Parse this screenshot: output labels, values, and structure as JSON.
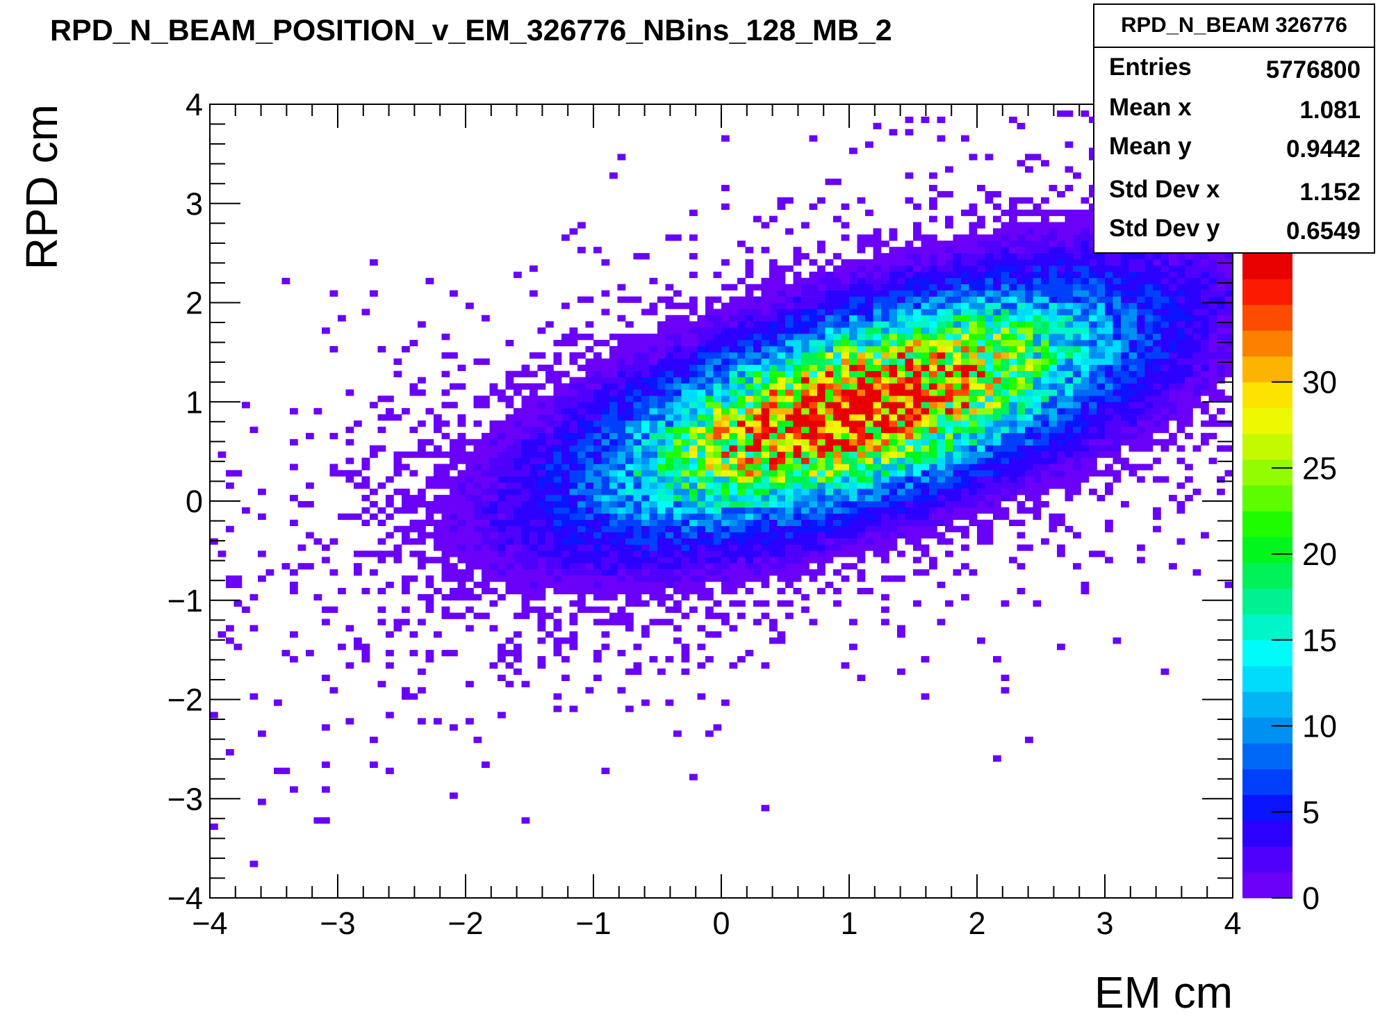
{
  "chart_data": {
    "type": "heatmap",
    "title": "RPD_N_BEAM_POSITION_v_EM_326776_NBins_128_MB_2",
    "xlabel": "EM cm",
    "ylabel": "RPD cm",
    "xlim": [
      -4,
      4
    ],
    "ylim": [
      -4,
      4
    ],
    "nbins_x": 128,
    "nbins_y": 128,
    "x_ticks": [
      {
        "value": -4,
        "label": "−4"
      },
      {
        "value": -3,
        "label": "−3"
      },
      {
        "value": -2,
        "label": "−2"
      },
      {
        "value": -1,
        "label": "−1"
      },
      {
        "value": 0,
        "label": "0"
      },
      {
        "value": 1,
        "label": "1"
      },
      {
        "value": 2,
        "label": "2"
      },
      {
        "value": 3,
        "label": "3"
      },
      {
        "value": 4,
        "label": "4"
      }
    ],
    "y_ticks": [
      {
        "value": -4,
        "label": "−4"
      },
      {
        "value": -3,
        "label": "−3"
      },
      {
        "value": -2,
        "label": "−2"
      },
      {
        "value": -1,
        "label": "−1"
      },
      {
        "value": 0,
        "label": "0"
      },
      {
        "value": 1,
        "label": "1"
      },
      {
        "value": 2,
        "label": "2"
      },
      {
        "value": 3,
        "label": "3"
      },
      {
        "value": 4,
        "label": "4"
      }
    ],
    "colorbar": {
      "min": 0,
      "max": 37.5,
      "ticks": [
        {
          "value": 0,
          "label": "0"
        },
        {
          "value": 5,
          "label": "5"
        },
        {
          "value": 10,
          "label": "10"
        },
        {
          "value": 15,
          "label": "15"
        },
        {
          "value": 20,
          "label": "20"
        },
        {
          "value": 25,
          "label": "25"
        },
        {
          "value": 30,
          "label": "30"
        }
      ],
      "palette": [
        "#6a00f8",
        "#4f00fb",
        "#2b00fc",
        "#0a14fd",
        "#0040fb",
        "#0068f6",
        "#0090f2",
        "#00b4f5",
        "#00dcfc",
        "#00fcfa",
        "#00f6c8",
        "#00f290",
        "#00f258",
        "#00f61c",
        "#20fc00",
        "#5efc00",
        "#94fc00",
        "#c4fa00",
        "#eef800",
        "#fce400",
        "#fcb400",
        "#fc8000",
        "#fc4c00",
        "#fc1a00",
        "#e80000"
      ]
    },
    "distribution": {
      "mean_x": 1.081,
      "mean_y": 0.9442,
      "std_x": 1.152,
      "std_y": 0.6549,
      "peak_count": 37
    },
    "stats": {
      "name": "RPD_N_BEAM 326776",
      "rows": [
        {
          "label": "Entries",
          "value": "5776800"
        },
        {
          "label": "Mean x",
          "value": "1.081"
        },
        {
          "label": "Mean y",
          "value": "0.9442"
        },
        {
          "label": "Std Dev x",
          "value": "1.152"
        },
        {
          "label": "Std Dev y",
          "value": "0.6549"
        }
      ]
    }
  }
}
